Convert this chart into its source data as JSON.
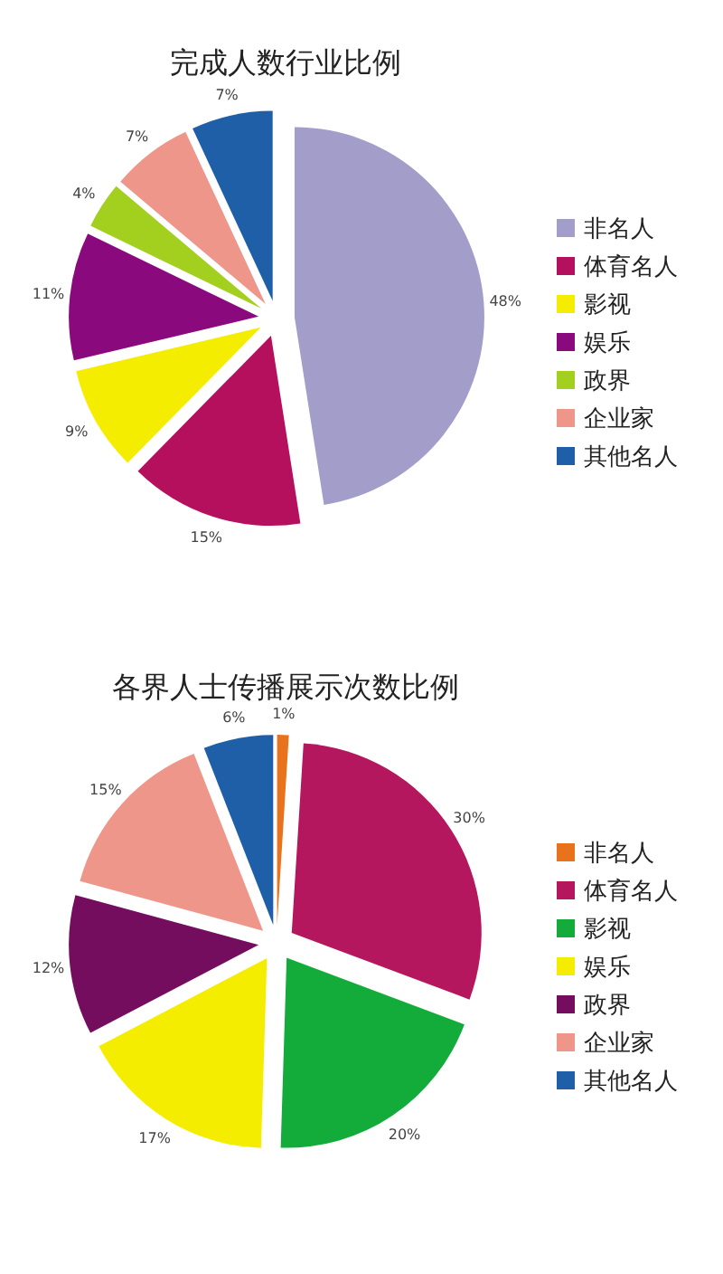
{
  "chart_data": [
    {
      "type": "pie",
      "title": "完成人数行业比例",
      "categories": [
        "非名人",
        "体育名人",
        "影视",
        "娱乐",
        "政界",
        "企业家",
        "其他名人"
      ],
      "values": [
        48,
        15,
        9,
        11,
        4,
        7,
        7
      ],
      "value_labels": [
        "48%",
        "15%",
        "9%",
        "11%",
        "4%",
        "7%",
        "7%"
      ],
      "colors": [
        "#a39ec9",
        "#b5105e",
        "#f5ed00",
        "#8a0a7e",
        "#a3cf1e",
        "#ef968a",
        "#1f5fa8"
      ],
      "legend": "right"
    },
    {
      "type": "pie",
      "title": "各界人士传播展示次数比例",
      "categories": [
        "非名人",
        "体育名人",
        "影视",
        "娱乐",
        "政界",
        "企业家",
        "其他名人"
      ],
      "values": [
        1,
        30,
        20,
        17,
        12,
        15,
        6
      ],
      "value_labels": [
        "1%",
        "30%",
        "20%",
        "17%",
        "12%",
        "15%",
        "6%"
      ],
      "colors": [
        "#e8731c",
        "#b5175e",
        "#13ac3b",
        "#f5ed00",
        "#740d5e",
        "#ef968a",
        "#1f5fa8"
      ],
      "legend": "right"
    }
  ]
}
